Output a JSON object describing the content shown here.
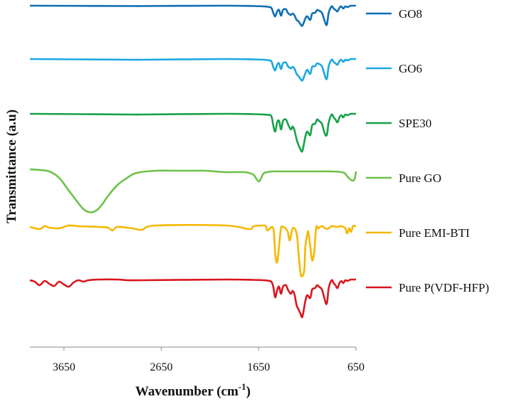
{
  "chart_data": {
    "type": "line",
    "title": "",
    "xlabel": "Wavenumber (cm",
    "xlabel_sup": "-1",
    "xlabel_close": ")",
    "ylabel": "Transmittance (a.u)",
    "xlim": [
      4000,
      650
    ],
    "x_reversed": true,
    "xticks": [
      "3650",
      "2650",
      "1650",
      "650"
    ],
    "grid": false,
    "legend_position": "right",
    "series": [
      {
        "name": "GO8",
        "color": "#0f6fb3",
        "offset": 0,
        "x": [
          4000,
          2950,
          2850,
          2000,
          1700,
          1600,
          1560,
          1520,
          1500,
          1480,
          1460,
          1440,
          1420,
          1400,
          1370,
          1350,
          1320,
          1300,
          1280,
          1260,
          1240,
          1220,
          1200,
          1170,
          1150,
          1120,
          1100,
          1070,
          1050,
          1030,
          1000,
          975,
          950,
          930,
          900,
          880,
          860,
          840,
          820,
          800,
          780,
          760,
          740,
          720,
          700,
          680,
          650
        ],
        "y": [
          0,
          -0.5,
          -0.5,
          0,
          -0.5,
          -1,
          -1.5,
          -3,
          -10,
          -15,
          -8,
          -6,
          -14,
          -6,
          -5,
          -10,
          -13,
          -11,
          -14,
          -20,
          -22,
          -26,
          -28,
          -18,
          -15,
          -20,
          -11,
          -10,
          -6,
          -7,
          -10,
          -20,
          -27,
          -10,
          -1,
          -4,
          -6,
          -8,
          -3,
          -1,
          -4,
          -1,
          -2,
          -1,
          0,
          0,
          0
        ]
      },
      {
        "name": "GO6",
        "color": "#1ba8e0",
        "offset": 75,
        "x": [
          4000,
          2950,
          2850,
          2000,
          1700,
          1600,
          1560,
          1520,
          1500,
          1480,
          1460,
          1440,
          1420,
          1400,
          1370,
          1350,
          1320,
          1300,
          1280,
          1260,
          1240,
          1220,
          1200,
          1170,
          1150,
          1120,
          1100,
          1070,
          1050,
          1030,
          1000,
          975,
          950,
          930,
          900,
          880,
          860,
          840,
          820,
          800,
          780,
          760,
          740,
          720,
          700,
          680,
          650
        ],
        "y": [
          0,
          -1,
          -1,
          0,
          -0.5,
          -1,
          -1.5,
          -3,
          -11,
          -16,
          -8,
          -6,
          -14,
          -6,
          -5,
          -10,
          -13,
          -11,
          -14,
          -21,
          -24,
          -28,
          -30,
          -20,
          -15,
          -21,
          -11,
          -10,
          -6,
          -7,
          -10,
          -21,
          -28,
          -10,
          -1,
          -4,
          -6,
          -8,
          -3,
          -1,
          -4,
          -1,
          -2,
          -1,
          0,
          0,
          0
        ]
      },
      {
        "name": "SPE30",
        "color": "#16a148",
        "offset": 152,
        "x": [
          4000,
          2950,
          2850,
          2000,
          1700,
          1600,
          1560,
          1520,
          1500,
          1480,
          1460,
          1440,
          1420,
          1400,
          1370,
          1350,
          1320,
          1300,
          1280,
          1260,
          1240,
          1220,
          1200,
          1170,
          1150,
          1120,
          1100,
          1070,
          1050,
          1030,
          1000,
          975,
          950,
          930,
          900,
          880,
          860,
          840,
          820,
          800,
          780,
          760,
          740,
          720,
          700,
          680,
          650
        ],
        "y": [
          0,
          -1,
          -1,
          0,
          -0.5,
          -1,
          -1.5,
          -3,
          -16,
          -25,
          -12,
          -10,
          -22,
          -10,
          -8,
          -14,
          -22,
          -18,
          -24,
          -36,
          -44,
          -50,
          -52,
          -32,
          -25,
          -30,
          -16,
          -14,
          -8,
          -10,
          -14,
          -26,
          -30,
          -12,
          -1,
          -5,
          -8,
          -12,
          -5,
          -2,
          -5,
          -1,
          -2,
          -1,
          0,
          0,
          0
        ]
      },
      {
        "name": "Pure GO",
        "color": "#6cc24a",
        "offset": 230,
        "x": [
          4000,
          3900,
          3800,
          3700,
          3600,
          3500,
          3450,
          3400,
          3350,
          3300,
          3250,
          3200,
          3100,
          3000,
          2900,
          2700,
          2500,
          2300,
          2200,
          2100,
          2000,
          1900,
          1800,
          1750,
          1700,
          1680,
          1650,
          1630,
          1600,
          1560,
          1500,
          1400,
          1300,
          1200,
          1100,
          1000,
          900,
          800,
          760,
          740,
          700,
          680,
          665,
          655,
          650
        ],
        "y": [
          0,
          -1,
          -3,
          -12,
          -30,
          -48,
          -56,
          -60,
          -60,
          -56,
          -48,
          -38,
          -22,
          -12,
          -5,
          -2,
          -2,
          -2,
          -2,
          -3,
          -4,
          -4,
          -4,
          -5,
          -8,
          -12,
          -17,
          -14,
          -6,
          -4,
          -3,
          -3,
          -3,
          -3,
          -3,
          -3,
          -3,
          -4,
          -6,
          -10,
          -15,
          -16,
          -14,
          -8,
          -3
        ]
      },
      {
        "name": "Pure EMI-BTI",
        "color": "#f5b800",
        "offset": 308,
        "x": [
          4000,
          3900,
          3850,
          3800,
          3700,
          3600,
          3500,
          3300,
          3200,
          3150,
          3100,
          2950,
          2850,
          2700,
          2000,
          1750,
          1700,
          1600,
          1575,
          1560,
          1500,
          1480,
          1460,
          1440,
          1420,
          1400,
          1380,
          1370,
          1350,
          1330,
          1300,
          1260,
          1240,
          1220,
          1200,
          1180,
          1170,
          1150,
          1140,
          1120,
          1100,
          1080,
          1070,
          1060,
          1050,
          1040,
          1000,
          950,
          900,
          850,
          800,
          760,
          740,
          720,
          700,
          680,
          650
        ],
        "y": [
          -3,
          -6,
          -2,
          -4,
          -5,
          -1,
          -2,
          -3,
          -4,
          -8,
          -3,
          -5,
          -7,
          -1,
          -1,
          -6,
          -2,
          -1,
          -2,
          -8,
          -5,
          -40,
          -53,
          -30,
          -5,
          -3,
          -4,
          -6,
          -10,
          -22,
          -5,
          -12,
          -40,
          -68,
          -72,
          -62,
          -30,
          -14,
          -10,
          -30,
          -50,
          -40,
          -22,
          -5,
          -2,
          -5,
          -2,
          -6,
          -2,
          -3,
          -2,
          -5,
          -12,
          -5,
          -10,
          -2,
          -2
        ]
      },
      {
        "name": "Pure P(VDF-HFP)",
        "color": "#d8161e",
        "offset": 385,
        "x": [
          4000,
          3950,
          3900,
          3850,
          3800,
          3750,
          3700,
          3650,
          3600,
          3550,
          3500,
          3450,
          3400,
          3300,
          3100,
          3000,
          2950,
          2850,
          2000,
          1700,
          1600,
          1560,
          1520,
          1500,
          1480,
          1460,
          1440,
          1420,
          1400,
          1370,
          1350,
          1320,
          1300,
          1280,
          1260,
          1240,
          1220,
          1200,
          1170,
          1150,
          1120,
          1100,
          1070,
          1050,
          1030,
          1000,
          975,
          950,
          930,
          900,
          880,
          860,
          840,
          820,
          800,
          780,
          760,
          740,
          720,
          700,
          680,
          650
        ],
        "y": [
          -1,
          -3,
          -8,
          -2,
          -6,
          -9,
          -3,
          -7,
          -10,
          -4,
          -1,
          -3,
          -1,
          0,
          0,
          -1,
          -1,
          -1,
          0,
          -0.5,
          -1,
          -1.5,
          -3,
          -10,
          -25,
          -15,
          -10,
          -20,
          -10,
          -8,
          -14,
          -20,
          -16,
          -22,
          -36,
          -42,
          -48,
          -52,
          -30,
          -22,
          -26,
          -14,
          -12,
          -8,
          -10,
          -14,
          -26,
          -34,
          -12,
          -1,
          -5,
          -8,
          -12,
          -5,
          -2,
          -5,
          -1,
          -2,
          -1,
          0,
          0,
          0
        ]
      }
    ]
  }
}
